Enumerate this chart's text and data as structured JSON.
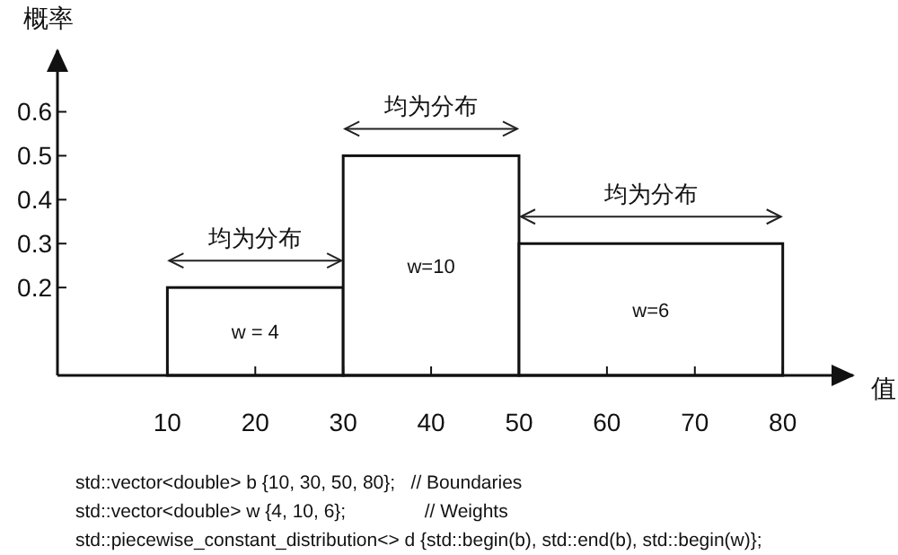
{
  "chart_data": {
    "type": "histogram",
    "ylabel": "概率",
    "xlabel": "值",
    "bins": [
      10,
      30,
      50,
      80
    ],
    "values": [
      0.2,
      0.5,
      0.3
    ],
    "color": "#ffffff",
    "xlim": [
      -2.5,
      88
    ],
    "ylim": [
      0,
      0.74
    ],
    "xticks": [
      10,
      20,
      30,
      40,
      50,
      60,
      70,
      80
    ],
    "yticks": [
      0.2,
      0.3,
      0.4,
      0.5,
      0.6
    ],
    "grid": false,
    "annotations": [
      "均为分布",
      "均为分布",
      "均为分布",
      "w = 4",
      "w=10",
      "w=6",
      "std::vector<double> b {10, 30, 50, 80};   // Boundaries",
      "std::vector<double> w {4, 10, 6};               // Weights",
      "std::piecewise_constant_distribution<> d {std::begin(b), std::end(b), std::begin(w)};"
    ]
  }
}
